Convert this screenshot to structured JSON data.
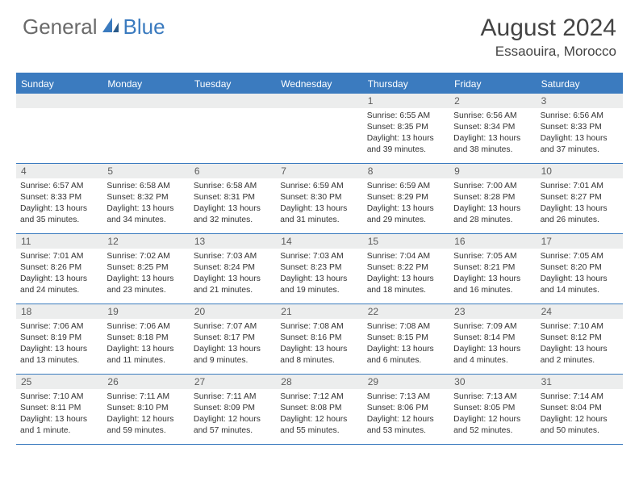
{
  "brand": {
    "part1": "General",
    "part2": "Blue"
  },
  "title": {
    "month": "August 2024",
    "location": "Essaouira, Morocco"
  },
  "weekdays": [
    "Sunday",
    "Monday",
    "Tuesday",
    "Wednesday",
    "Thursday",
    "Friday",
    "Saturday"
  ],
  "colors": {
    "accent": "#3b7bbf",
    "dayNumBg": "#eceded",
    "text": "#333"
  },
  "weeks": [
    [
      {
        "n": "",
        "sunrise": "",
        "sunset": "",
        "daylight": ""
      },
      {
        "n": "",
        "sunrise": "",
        "sunset": "",
        "daylight": ""
      },
      {
        "n": "",
        "sunrise": "",
        "sunset": "",
        "daylight": ""
      },
      {
        "n": "",
        "sunrise": "",
        "sunset": "",
        "daylight": ""
      },
      {
        "n": "1",
        "sunrise": "Sunrise: 6:55 AM",
        "sunset": "Sunset: 8:35 PM",
        "daylight": "Daylight: 13 hours and 39 minutes."
      },
      {
        "n": "2",
        "sunrise": "Sunrise: 6:56 AM",
        "sunset": "Sunset: 8:34 PM",
        "daylight": "Daylight: 13 hours and 38 minutes."
      },
      {
        "n": "3",
        "sunrise": "Sunrise: 6:56 AM",
        "sunset": "Sunset: 8:33 PM",
        "daylight": "Daylight: 13 hours and 37 minutes."
      }
    ],
    [
      {
        "n": "4",
        "sunrise": "Sunrise: 6:57 AM",
        "sunset": "Sunset: 8:33 PM",
        "daylight": "Daylight: 13 hours and 35 minutes."
      },
      {
        "n": "5",
        "sunrise": "Sunrise: 6:58 AM",
        "sunset": "Sunset: 8:32 PM",
        "daylight": "Daylight: 13 hours and 34 minutes."
      },
      {
        "n": "6",
        "sunrise": "Sunrise: 6:58 AM",
        "sunset": "Sunset: 8:31 PM",
        "daylight": "Daylight: 13 hours and 32 minutes."
      },
      {
        "n": "7",
        "sunrise": "Sunrise: 6:59 AM",
        "sunset": "Sunset: 8:30 PM",
        "daylight": "Daylight: 13 hours and 31 minutes."
      },
      {
        "n": "8",
        "sunrise": "Sunrise: 6:59 AM",
        "sunset": "Sunset: 8:29 PM",
        "daylight": "Daylight: 13 hours and 29 minutes."
      },
      {
        "n": "9",
        "sunrise": "Sunrise: 7:00 AM",
        "sunset": "Sunset: 8:28 PM",
        "daylight": "Daylight: 13 hours and 28 minutes."
      },
      {
        "n": "10",
        "sunrise": "Sunrise: 7:01 AM",
        "sunset": "Sunset: 8:27 PM",
        "daylight": "Daylight: 13 hours and 26 minutes."
      }
    ],
    [
      {
        "n": "11",
        "sunrise": "Sunrise: 7:01 AM",
        "sunset": "Sunset: 8:26 PM",
        "daylight": "Daylight: 13 hours and 24 minutes."
      },
      {
        "n": "12",
        "sunrise": "Sunrise: 7:02 AM",
        "sunset": "Sunset: 8:25 PM",
        "daylight": "Daylight: 13 hours and 23 minutes."
      },
      {
        "n": "13",
        "sunrise": "Sunrise: 7:03 AM",
        "sunset": "Sunset: 8:24 PM",
        "daylight": "Daylight: 13 hours and 21 minutes."
      },
      {
        "n": "14",
        "sunrise": "Sunrise: 7:03 AM",
        "sunset": "Sunset: 8:23 PM",
        "daylight": "Daylight: 13 hours and 19 minutes."
      },
      {
        "n": "15",
        "sunrise": "Sunrise: 7:04 AM",
        "sunset": "Sunset: 8:22 PM",
        "daylight": "Daylight: 13 hours and 18 minutes."
      },
      {
        "n": "16",
        "sunrise": "Sunrise: 7:05 AM",
        "sunset": "Sunset: 8:21 PM",
        "daylight": "Daylight: 13 hours and 16 minutes."
      },
      {
        "n": "17",
        "sunrise": "Sunrise: 7:05 AM",
        "sunset": "Sunset: 8:20 PM",
        "daylight": "Daylight: 13 hours and 14 minutes."
      }
    ],
    [
      {
        "n": "18",
        "sunrise": "Sunrise: 7:06 AM",
        "sunset": "Sunset: 8:19 PM",
        "daylight": "Daylight: 13 hours and 13 minutes."
      },
      {
        "n": "19",
        "sunrise": "Sunrise: 7:06 AM",
        "sunset": "Sunset: 8:18 PM",
        "daylight": "Daylight: 13 hours and 11 minutes."
      },
      {
        "n": "20",
        "sunrise": "Sunrise: 7:07 AM",
        "sunset": "Sunset: 8:17 PM",
        "daylight": "Daylight: 13 hours and 9 minutes."
      },
      {
        "n": "21",
        "sunrise": "Sunrise: 7:08 AM",
        "sunset": "Sunset: 8:16 PM",
        "daylight": "Daylight: 13 hours and 8 minutes."
      },
      {
        "n": "22",
        "sunrise": "Sunrise: 7:08 AM",
        "sunset": "Sunset: 8:15 PM",
        "daylight": "Daylight: 13 hours and 6 minutes."
      },
      {
        "n": "23",
        "sunrise": "Sunrise: 7:09 AM",
        "sunset": "Sunset: 8:14 PM",
        "daylight": "Daylight: 13 hours and 4 minutes."
      },
      {
        "n": "24",
        "sunrise": "Sunrise: 7:10 AM",
        "sunset": "Sunset: 8:12 PM",
        "daylight": "Daylight: 13 hours and 2 minutes."
      }
    ],
    [
      {
        "n": "25",
        "sunrise": "Sunrise: 7:10 AM",
        "sunset": "Sunset: 8:11 PM",
        "daylight": "Daylight: 13 hours and 1 minute."
      },
      {
        "n": "26",
        "sunrise": "Sunrise: 7:11 AM",
        "sunset": "Sunset: 8:10 PM",
        "daylight": "Daylight: 12 hours and 59 minutes."
      },
      {
        "n": "27",
        "sunrise": "Sunrise: 7:11 AM",
        "sunset": "Sunset: 8:09 PM",
        "daylight": "Daylight: 12 hours and 57 minutes."
      },
      {
        "n": "28",
        "sunrise": "Sunrise: 7:12 AM",
        "sunset": "Sunset: 8:08 PM",
        "daylight": "Daylight: 12 hours and 55 minutes."
      },
      {
        "n": "29",
        "sunrise": "Sunrise: 7:13 AM",
        "sunset": "Sunset: 8:06 PM",
        "daylight": "Daylight: 12 hours and 53 minutes."
      },
      {
        "n": "30",
        "sunrise": "Sunrise: 7:13 AM",
        "sunset": "Sunset: 8:05 PM",
        "daylight": "Daylight: 12 hours and 52 minutes."
      },
      {
        "n": "31",
        "sunrise": "Sunrise: 7:14 AM",
        "sunset": "Sunset: 8:04 PM",
        "daylight": "Daylight: 12 hours and 50 minutes."
      }
    ]
  ]
}
